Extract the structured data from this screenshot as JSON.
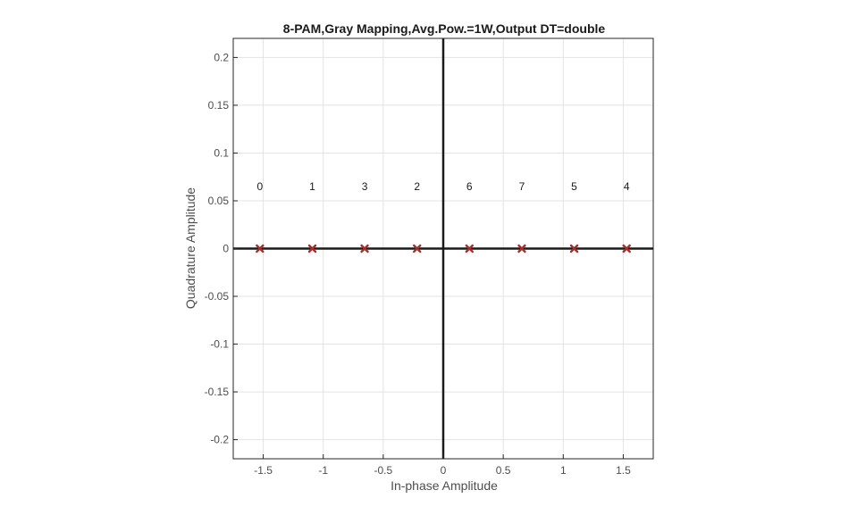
{
  "chart_data": {
    "type": "scatter",
    "title": "8-PAM,Gray Mapping,Avg.Pow.=1W,Output DT=double",
    "xlabel": "In-phase Amplitude",
    "ylabel": "Quadrature Amplitude",
    "xlim": [
      -1.75,
      1.75
    ],
    "ylim": [
      -0.22,
      0.22
    ],
    "grid": true,
    "x_ticks": [
      -1.5,
      -1,
      -0.5,
      0,
      0.5,
      1,
      1.5
    ],
    "x_tick_labels": [
      "-1.5",
      "-1",
      "-0.5",
      "0",
      "0.5",
      "1",
      "1.5"
    ],
    "y_ticks": [
      0.2,
      0.15,
      0.1,
      0.05,
      0,
      -0.05,
      -0.1,
      -0.15,
      -0.2
    ],
    "y_tick_labels": [
      "0.2",
      "0.15",
      "0.1",
      "0.05",
      "0",
      "-0.05",
      "-0.1",
      "-0.15",
      "-0.2"
    ],
    "points": [
      {
        "x": -1.528,
        "y": 0,
        "label": "0"
      },
      {
        "x": -1.091,
        "y": 0,
        "label": "1"
      },
      {
        "x": -0.655,
        "y": 0,
        "label": "3"
      },
      {
        "x": -0.218,
        "y": 0,
        "label": "2"
      },
      {
        "x": 0.218,
        "y": 0,
        "label": "6"
      },
      {
        "x": 0.655,
        "y": 0,
        "label": "7"
      },
      {
        "x": 1.091,
        "y": 0,
        "label": "5"
      },
      {
        "x": 1.528,
        "y": 0,
        "label": "4"
      }
    ],
    "label_y": 0.065,
    "marker": "x",
    "marker_color": "#a2312c",
    "axis_line_color": "#1a1a1a",
    "grid_color": "#e3e3e3"
  }
}
